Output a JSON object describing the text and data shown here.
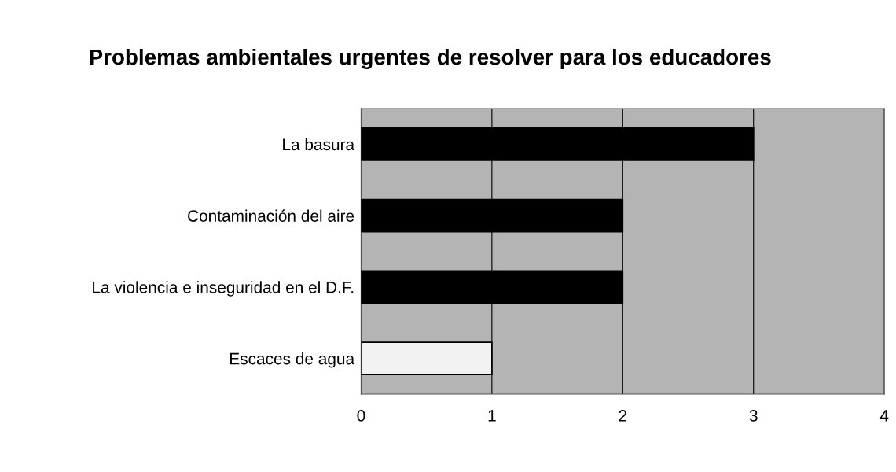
{
  "chart_data": {
    "type": "bar",
    "orientation": "horizontal",
    "title": "Problemas ambientales urgentes de resolver para los educadores",
    "categories": [
      "La basura",
      "Contaminación del aire",
      "La violencia e inseguridad en el D.F.",
      "Escaces de agua"
    ],
    "values": [
      3,
      2,
      2,
      1
    ],
    "colors": [
      "#000000",
      "#000000",
      "#000000",
      "#f2f2f2"
    ],
    "xlim": [
      0,
      4
    ],
    "xticks": [
      0,
      1,
      2,
      3,
      4
    ],
    "grid": "x"
  }
}
